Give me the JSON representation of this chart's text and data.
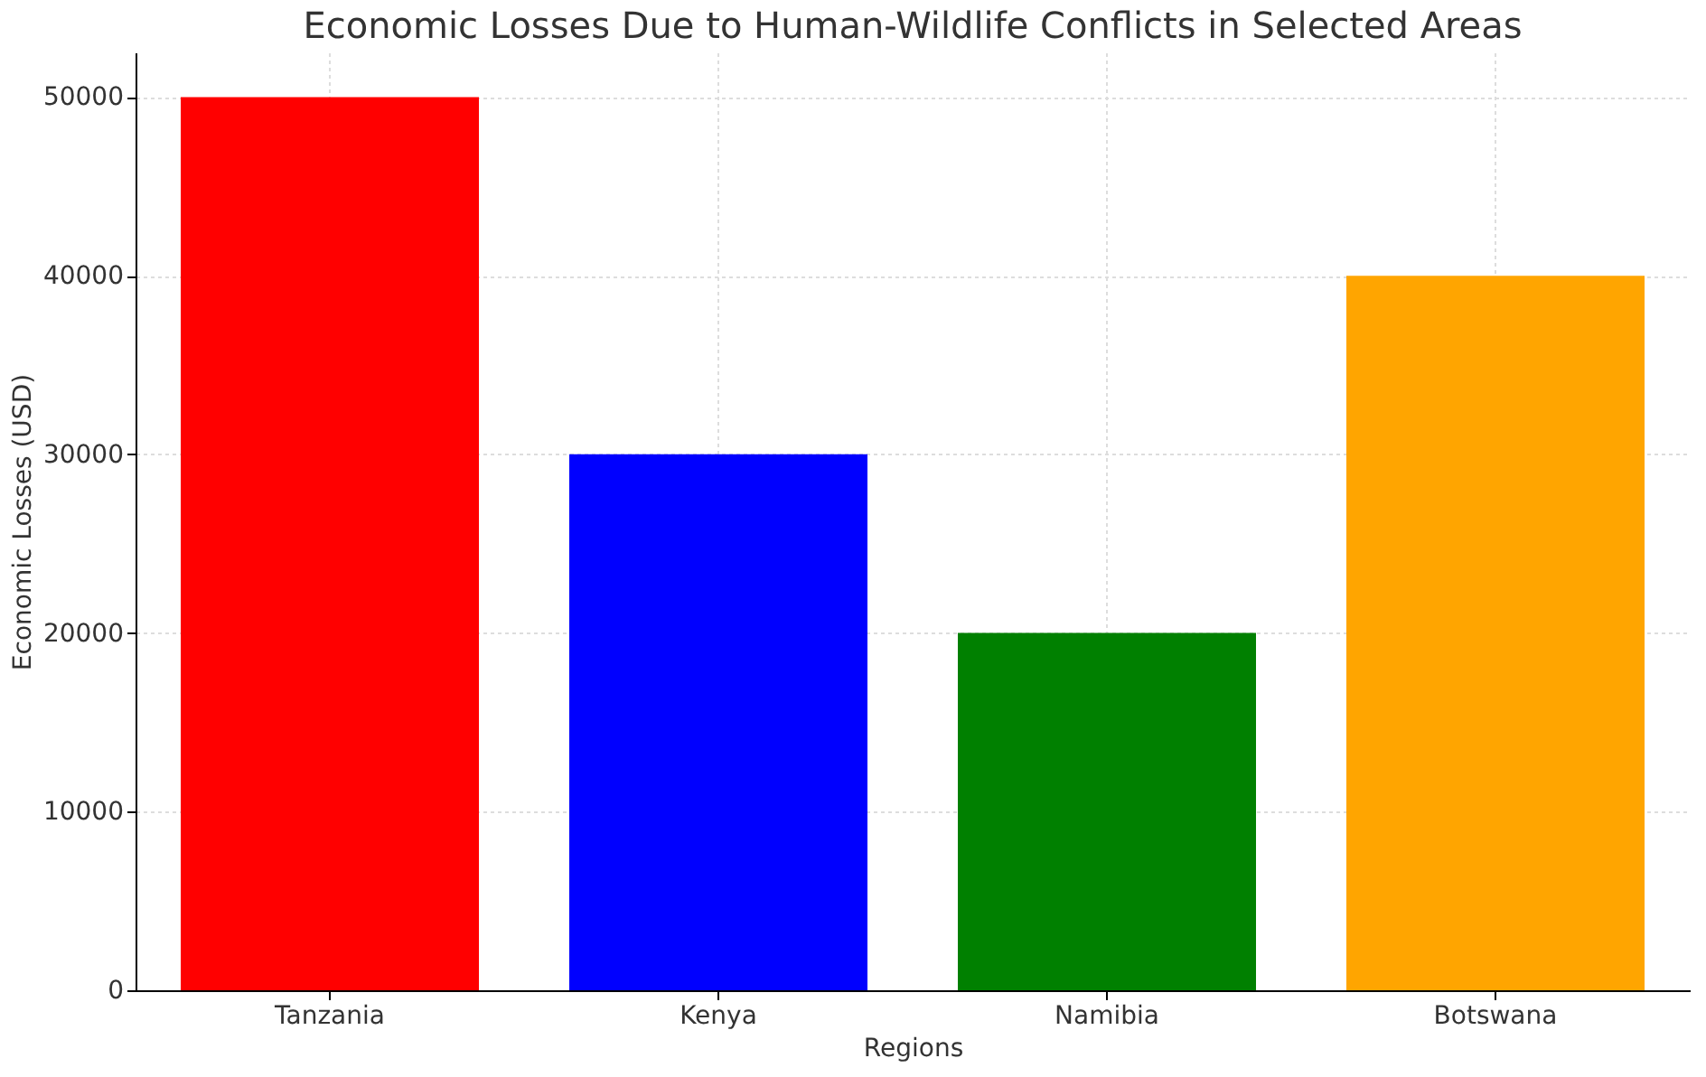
{
  "chart_data": {
    "type": "bar",
    "title": "Economic Losses Due to Human-Wildlife Conflicts in Selected Areas",
    "xlabel": "Regions",
    "ylabel": "Economic Losses (USD)",
    "categories": [
      "Tanzania",
      "Kenya",
      "Namibia",
      "Botswana"
    ],
    "values": [
      50000,
      30000,
      20000,
      40000
    ],
    "colors": [
      "#ff0000",
      "#0000ff",
      "#008000",
      "#ffa500"
    ],
    "ylim": [
      0,
      52500
    ],
    "yticks": [
      0,
      10000,
      20000,
      30000,
      40000,
      50000
    ],
    "grid": true
  }
}
